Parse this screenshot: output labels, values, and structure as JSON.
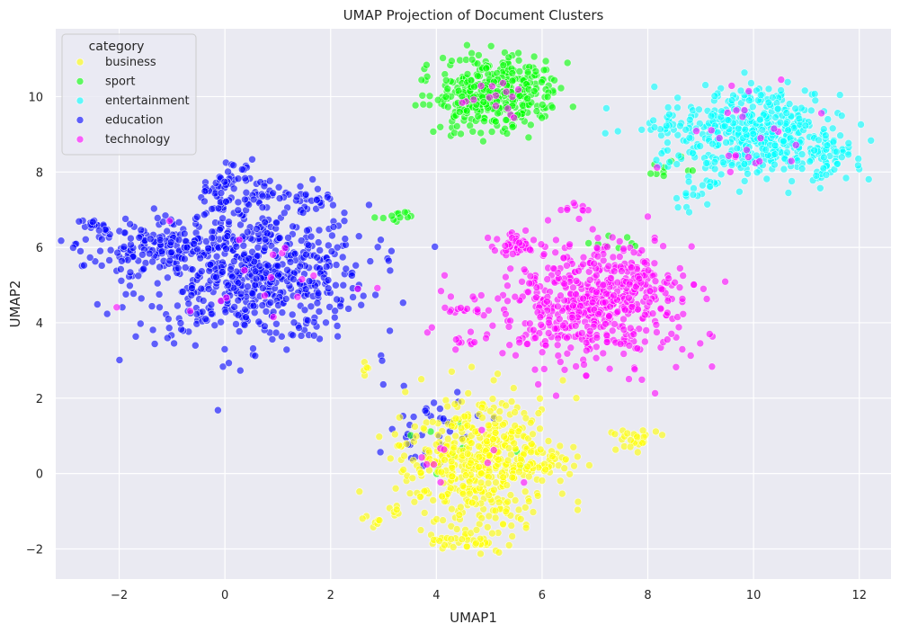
{
  "chart_data": {
    "type": "scatter",
    "title": "UMAP Projection of Document Clusters",
    "xlabel": "UMAP1",
    "ylabel": "UMAP2",
    "xlim": [
      -3.2,
      12.6
    ],
    "ylim": [
      -2.8,
      11.8
    ],
    "xticks": [
      -2,
      0,
      2,
      4,
      6,
      8,
      10,
      12
    ],
    "yticks": [
      -2,
      0,
      2,
      4,
      6,
      8,
      10
    ],
    "grid": true,
    "legend": {
      "title": "category",
      "placement": "top-left"
    },
    "series": [
      {
        "name": "business",
        "color": "#ffff00",
        "clusters": [
          {
            "cx": 4.8,
            "cy": 0.3,
            "sx": 0.7,
            "sy": 0.85,
            "n": 500,
            "seed": 11
          },
          {
            "cx": 4.6,
            "cy": -1.8,
            "sx": 0.35,
            "sy": 0.15,
            "n": 40,
            "seed": 12
          },
          {
            "cx": 7.7,
            "cy": 0.9,
            "sx": 0.2,
            "sy": 0.12,
            "n": 25,
            "seed": 13
          },
          {
            "cx": 2.8,
            "cy": -1.2,
            "sx": 0.1,
            "sy": 0.08,
            "n": 6,
            "seed": 14
          },
          {
            "cx": 3.2,
            "cy": -1.0,
            "sx": 0.08,
            "sy": 0.06,
            "n": 5,
            "seed": 15
          },
          {
            "cx": 2.7,
            "cy": 2.8,
            "sx": 0.1,
            "sy": 0.1,
            "n": 5,
            "seed": 16
          },
          {
            "cx": 6.2,
            "cy": 0.3,
            "sx": 0.25,
            "sy": 0.2,
            "n": 20,
            "seed": 17
          }
        ]
      },
      {
        "name": "sport",
        "color": "#00ff00",
        "clusters": [
          {
            "cx": 5.1,
            "cy": 10.1,
            "sx": 0.55,
            "sy": 0.5,
            "n": 380,
            "seed": 21
          },
          {
            "cx": 3.3,
            "cy": 6.8,
            "sx": 0.2,
            "sy": 0.07,
            "n": 12,
            "seed": 22
          },
          {
            "cx": 8.4,
            "cy": 8.1,
            "sx": 0.25,
            "sy": 0.15,
            "n": 10,
            "seed": 23
          },
          {
            "cx": 7.4,
            "cy": 6.1,
            "sx": 0.3,
            "sy": 0.1,
            "n": 8,
            "seed": 24
          },
          {
            "cx": 4.8,
            "cy": 0.6,
            "sx": 0.6,
            "sy": 0.6,
            "n": 10,
            "seed": 25
          }
        ]
      },
      {
        "name": "entertainment",
        "color": "#00ffff",
        "clusters": [
          {
            "cx": 10.0,
            "cy": 9.0,
            "sx": 0.8,
            "sy": 0.6,
            "n": 480,
            "seed": 31
          },
          {
            "cx": 11.3,
            "cy": 8.3,
            "sx": 0.3,
            "sy": 0.3,
            "n": 40,
            "seed": 32
          },
          {
            "cx": 8.8,
            "cy": 7.3,
            "sx": 0.15,
            "sy": 0.3,
            "n": 15,
            "seed": 33
          },
          {
            "cx": 8.3,
            "cy": 9.2,
            "sx": 0.2,
            "sy": 0.08,
            "n": 10,
            "seed": 34
          }
        ]
      },
      {
        "name": "education",
        "color": "#0000ff",
        "clusters": [
          {
            "cx": 0.5,
            "cy": 5.3,
            "sx": 1.1,
            "sy": 0.9,
            "n": 650,
            "seed": 41
          },
          {
            "cx": -1.5,
            "cy": 6.0,
            "sx": 0.7,
            "sy": 0.3,
            "n": 120,
            "seed": 42
          },
          {
            "cx": 0.2,
            "cy": 7.5,
            "sx": 0.4,
            "sy": 0.4,
            "n": 80,
            "seed": 43
          },
          {
            "cx": -2.4,
            "cy": 6.6,
            "sx": 0.15,
            "sy": 0.1,
            "n": 15,
            "seed": 44
          },
          {
            "cx": 3.9,
            "cy": 1.2,
            "sx": 0.45,
            "sy": 0.6,
            "n": 40,
            "seed": 45
          },
          {
            "cx": 1.5,
            "cy": 7.3,
            "sx": 0.4,
            "sy": 0.2,
            "n": 25,
            "seed": 46
          }
        ]
      },
      {
        "name": "technology",
        "color": "#ff00ff",
        "clusters": [
          {
            "cx": 6.9,
            "cy": 4.5,
            "sx": 0.85,
            "sy": 0.8,
            "n": 560,
            "seed": 51
          },
          {
            "cx": 5.5,
            "cy": 6.1,
            "sx": 0.2,
            "sy": 0.15,
            "n": 40,
            "seed": 52
          },
          {
            "cx": 7.8,
            "cy": 5.0,
            "sx": 0.4,
            "sy": 0.3,
            "n": 50,
            "seed": 53
          },
          {
            "cx": 4.5,
            "cy": 4.3,
            "sx": 0.2,
            "sy": 0.06,
            "n": 15,
            "seed": 54
          },
          {
            "cx": 6.7,
            "cy": 7.0,
            "sx": 0.15,
            "sy": 0.15,
            "n": 10,
            "seed": 55
          },
          {
            "cx": 9.8,
            "cy": 8.9,
            "sx": 0.6,
            "sy": 0.6,
            "n": 25,
            "seed": 56
          },
          {
            "cx": 5.1,
            "cy": 10.0,
            "sx": 0.4,
            "sy": 0.3,
            "n": 15,
            "seed": 57
          },
          {
            "cx": 0.7,
            "cy": 5.3,
            "sx": 1.0,
            "sy": 0.7,
            "n": 18,
            "seed": 58
          },
          {
            "cx": 4.5,
            "cy": 3.5,
            "sx": 0.2,
            "sy": 0.05,
            "n": 8,
            "seed": 59
          },
          {
            "cx": 4.6,
            "cy": 0.5,
            "sx": 0.5,
            "sy": 0.5,
            "n": 10,
            "seed": 60
          }
        ]
      }
    ]
  }
}
